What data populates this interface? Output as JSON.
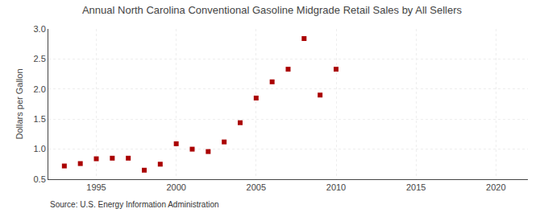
{
  "chart_data": {
    "type": "scatter",
    "title": "Annual North Carolina Conventional Gasoline Midgrade Retail Sales by All Sellers",
    "ylabel": "Dollars per Gallon",
    "annotations": [
      "Source: U.S. Energy Information Administration"
    ],
    "x": [
      1993,
      1994,
      1995,
      1996,
      1997,
      1998,
      1999,
      2000,
      2001,
      2002,
      2003,
      2004,
      2005,
      2006,
      2007,
      2008,
      2009,
      2010
    ],
    "values": [
      0.72,
      0.76,
      0.84,
      0.85,
      0.85,
      0.65,
      0.75,
      1.09,
      1.0,
      0.96,
      1.12,
      1.44,
      1.85,
      2.12,
      2.33,
      2.84,
      1.9,
      2.33
    ],
    "color": "#aa0000",
    "marker": "square",
    "xlim": [
      1992,
      2022
    ],
    "ylim": [
      0.5,
      3.0
    ],
    "xticks": [
      1995,
      2000,
      2005,
      2010,
      2015,
      2020
    ],
    "yticks": [
      0.5,
      {
        "value": 1,
        "label": "1.0"
      },
      1.5,
      {
        "value": 2,
        "label": "2.0"
      },
      2.5,
      {
        "value": 3,
        "label": "3.0"
      }
    ],
    "grid": true
  }
}
